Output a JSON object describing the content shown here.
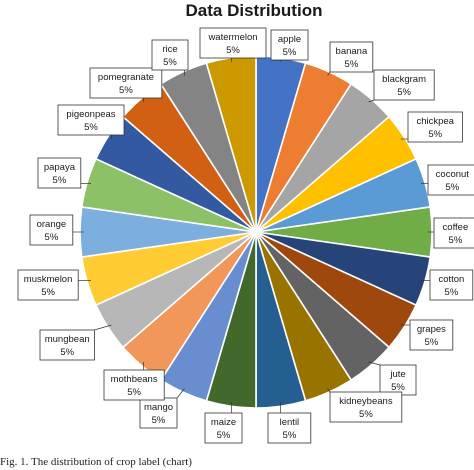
{
  "chart_data": {
    "type": "pie",
    "title": "Data Distribution",
    "categories": [
      "apple",
      "banana",
      "blackgram",
      "chickpea",
      "coconut",
      "coffee",
      "cotton",
      "grapes",
      "jute",
      "kidneybeans",
      "lentil",
      "maize",
      "mango",
      "mothbeans",
      "mungbean",
      "muskmelon",
      "orange",
      "papaya",
      "pigeonpeas",
      "pomegranate",
      "rice",
      "watermelon"
    ],
    "values": [
      5,
      5,
      5,
      5,
      5,
      5,
      5,
      5,
      5,
      5,
      5,
      5,
      5,
      5,
      5,
      5,
      5,
      5,
      5,
      5,
      5,
      5
    ],
    "value_labels": [
      "5%",
      "5%",
      "5%",
      "5%",
      "5%",
      "5%",
      "5%",
      "5%",
      "5%",
      "5%",
      "5%",
      "5%",
      "5%",
      "5%",
      "5%",
      "5%",
      "5%",
      "5%",
      "5%",
      "5%",
      "5%",
      "5%"
    ],
    "colors": [
      "#4472C4",
      "#ED7D31",
      "#A5A5A5",
      "#FFC000",
      "#5B9BD5",
      "#70AD47",
      "#264478",
      "#9E480E",
      "#636363",
      "#997300",
      "#255E91",
      "#43682B",
      "#698ED0",
      "#F1975A",
      "#B7B7B7",
      "#FFCD33",
      "#7CAFDD",
      "#8CC168",
      "#335AA1",
      "#D26012",
      "#848484",
      "#CC9A00"
    ],
    "legend": "none",
    "data_labels": "callouts"
  },
  "caption": "Fig. 1.   The distribution of crop label (chart)"
}
